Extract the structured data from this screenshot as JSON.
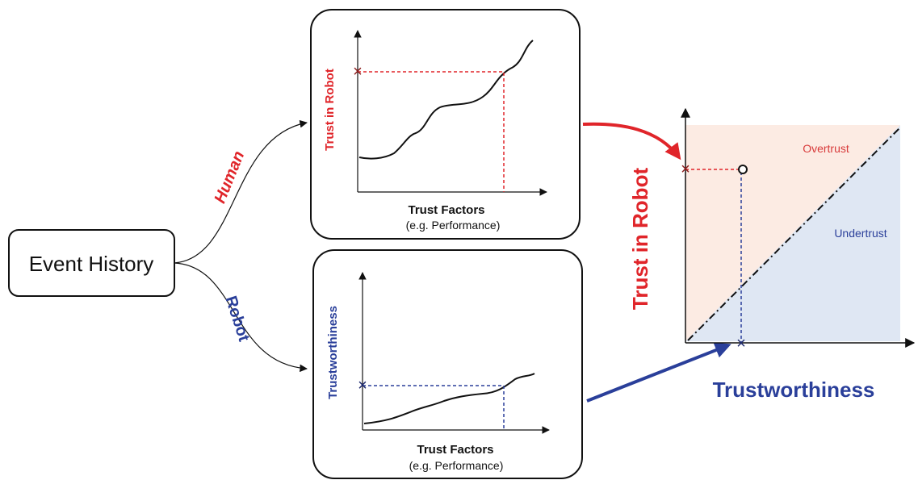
{
  "event_history": {
    "label": "Event History"
  },
  "branches": {
    "human": "Human",
    "robot": "Robot"
  },
  "human_panel": {
    "ylabel": "Trust in Robot",
    "xlabel": "Trust Factors",
    "xsub": "(e.g. Performance)"
  },
  "robot_panel": {
    "ylabel": "Trustworthiness",
    "xlabel": "Trust Factors",
    "xsub": "(e.g. Performance)"
  },
  "calibration_plot": {
    "ylabel": "Trust in Robot",
    "xlabel": "Trustworthiness",
    "overtrust": "Overtrust",
    "undertrust": "Undertrust"
  },
  "colors": {
    "human_red": "#e0252a",
    "robot_blue": "#2a3f9a",
    "overtrust_fill": "#fcebe3",
    "undertrust_fill": "#dfe7f3",
    "ink": "#111111"
  }
}
